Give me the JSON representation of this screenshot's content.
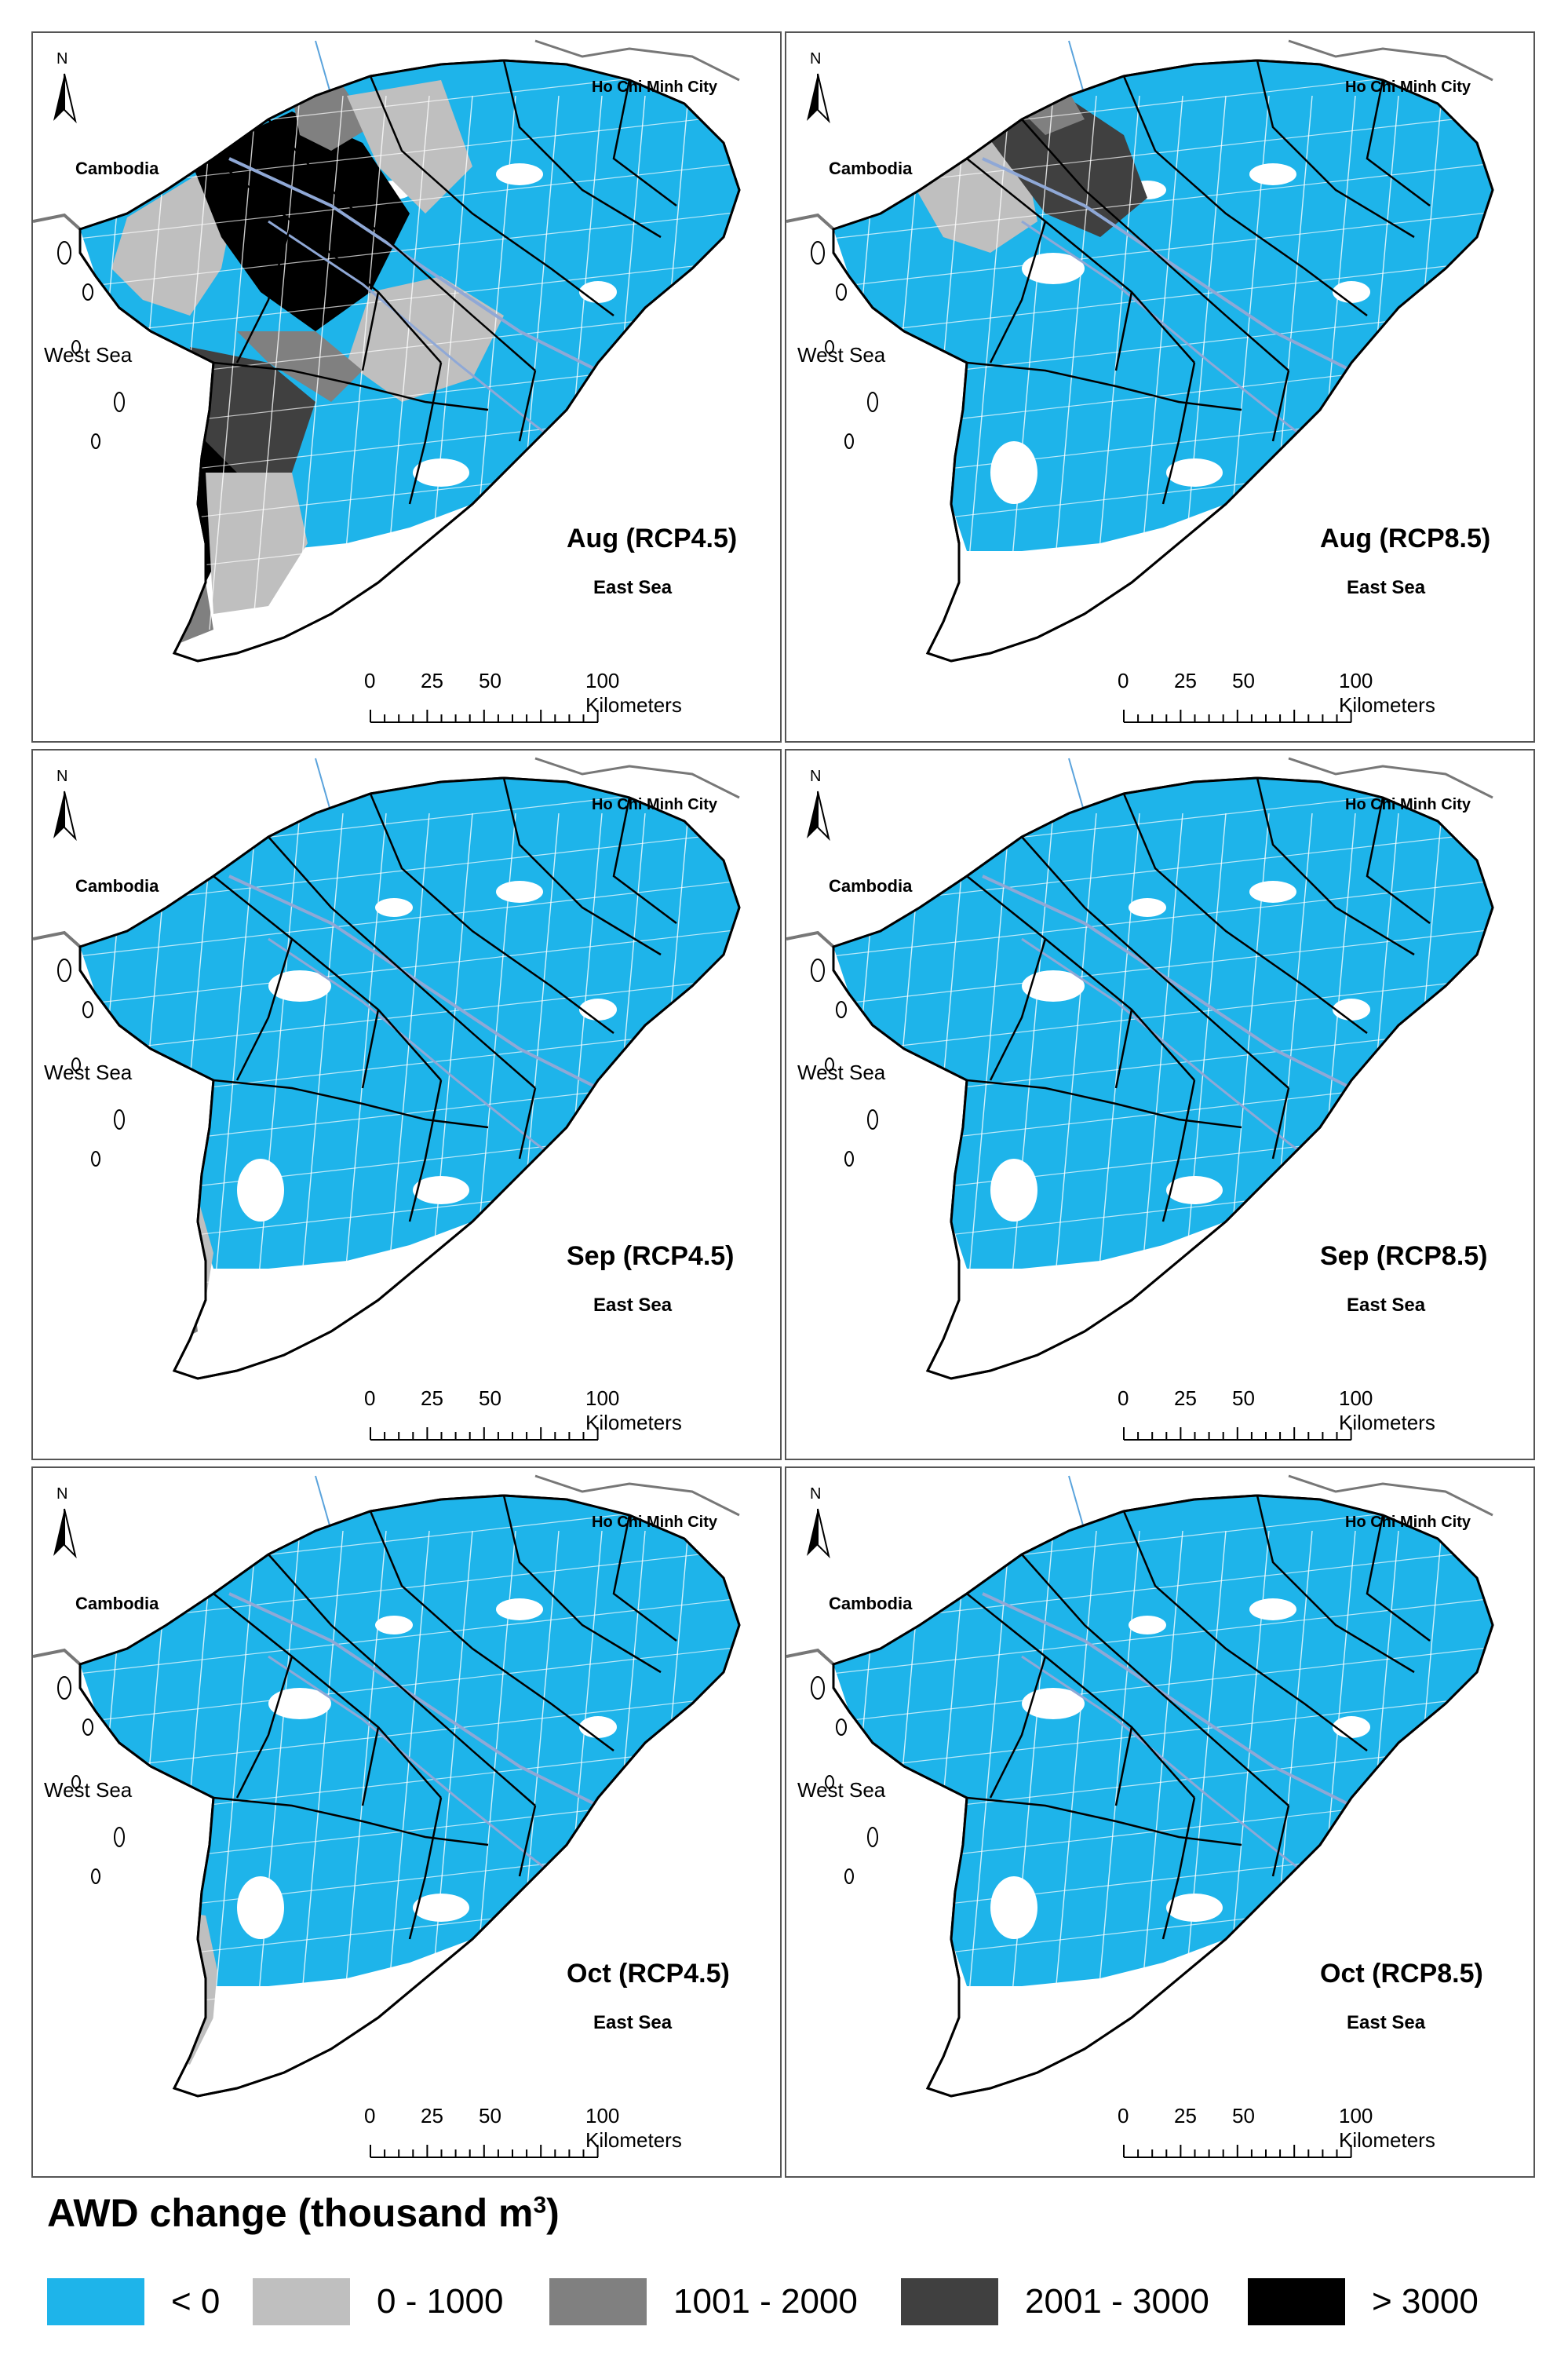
{
  "place_labels": {
    "hcmc": "Ho Chi Minh City",
    "cambodia": "Cambodia",
    "west_sea": "West Sea",
    "east_sea": "East Sea"
  },
  "north_label": "N",
  "scale_bar": {
    "ticks": [
      "0",
      "25",
      "50"
    ],
    "end_label": "100 Kilometers"
  },
  "panels": [
    {
      "title": "Aug (RCP4.5)",
      "style": "aug45"
    },
    {
      "title": "Aug (RCP8.5)",
      "style": "aug85"
    },
    {
      "title": "Sep (RCP4.5)",
      "style": "sep45"
    },
    {
      "title": "Sep (RCP8.5)",
      "style": "blue"
    },
    {
      "title": "Oct (RCP4.5)",
      "style": "oct45"
    },
    {
      "title": "Oct (RCP8.5)",
      "style": "blue"
    }
  ],
  "legend": {
    "title_main": "AWD change (thousand m",
    "title_sup": "3",
    "title_end": ")",
    "items": [
      {
        "label": "< 0",
        "color": "#1EB4EA"
      },
      {
        "label": "0 - 1000",
        "color": "#BFBFBF"
      },
      {
        "label": "1001 - 2000",
        "color": "#808080"
      },
      {
        "label": "2001 - 3000",
        "color": "#404040"
      },
      {
        "label": "> 3000",
        "color": "#000000"
      }
    ]
  }
}
